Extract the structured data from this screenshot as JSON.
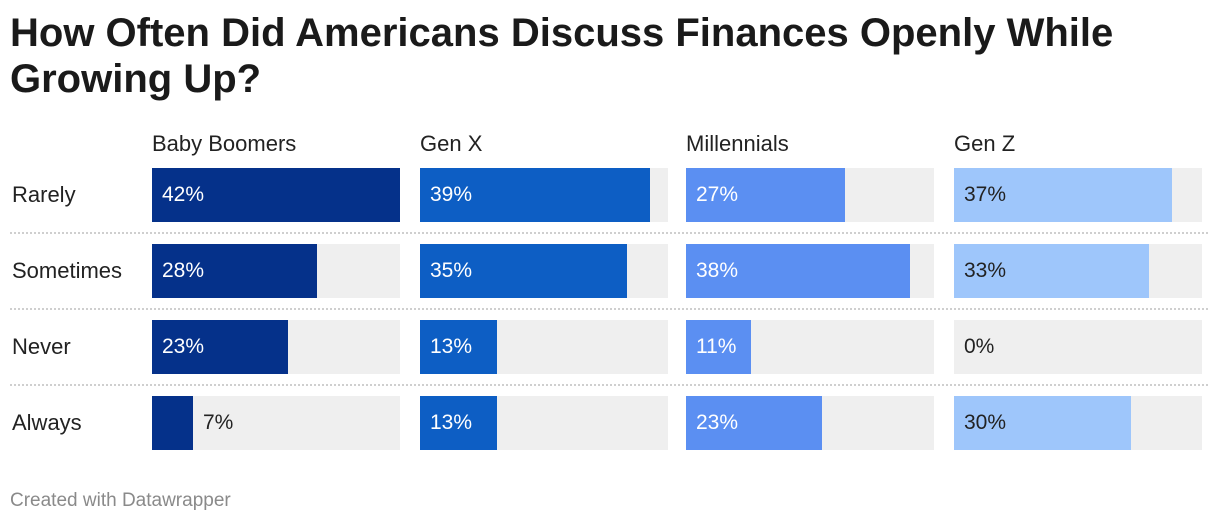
{
  "title": "How Often Did Americans Discuss Finances Openly While Growing Up?",
  "footer": "Created with Datawrapper",
  "colors": {
    "Baby Boomers": "#05318a",
    "Gen X": "#0d5ec4",
    "Millennials": "#5b8ff2",
    "Gen Z": "#9ec6fb",
    "track": "#efefef"
  },
  "chart_data": {
    "type": "bar",
    "title": "How Often Did Americans Discuss Finances Openly While Growing Up?",
    "categories": [
      "Rarely",
      "Sometimes",
      "Never",
      "Always"
    ],
    "xlim": [
      0,
      42
    ],
    "value_suffix": "%",
    "series": [
      {
        "name": "Baby Boomers",
        "values": [
          42,
          28,
          23,
          7
        ],
        "labels": [
          "42%",
          "28%",
          "23%",
          "7%"
        ]
      },
      {
        "name": "Gen X",
        "values": [
          39,
          35,
          13,
          13
        ],
        "labels": [
          "39%",
          "35%",
          "13%",
          "13%"
        ]
      },
      {
        "name": "Millennials",
        "values": [
          27,
          38,
          11,
          23
        ],
        "labels": [
          "27%",
          "38%",
          "11%",
          "23%"
        ]
      },
      {
        "name": "Gen Z",
        "values": [
          37,
          33,
          0,
          30
        ],
        "labels": [
          "37%",
          "33%",
          "0%",
          "30%"
        ]
      }
    ]
  }
}
